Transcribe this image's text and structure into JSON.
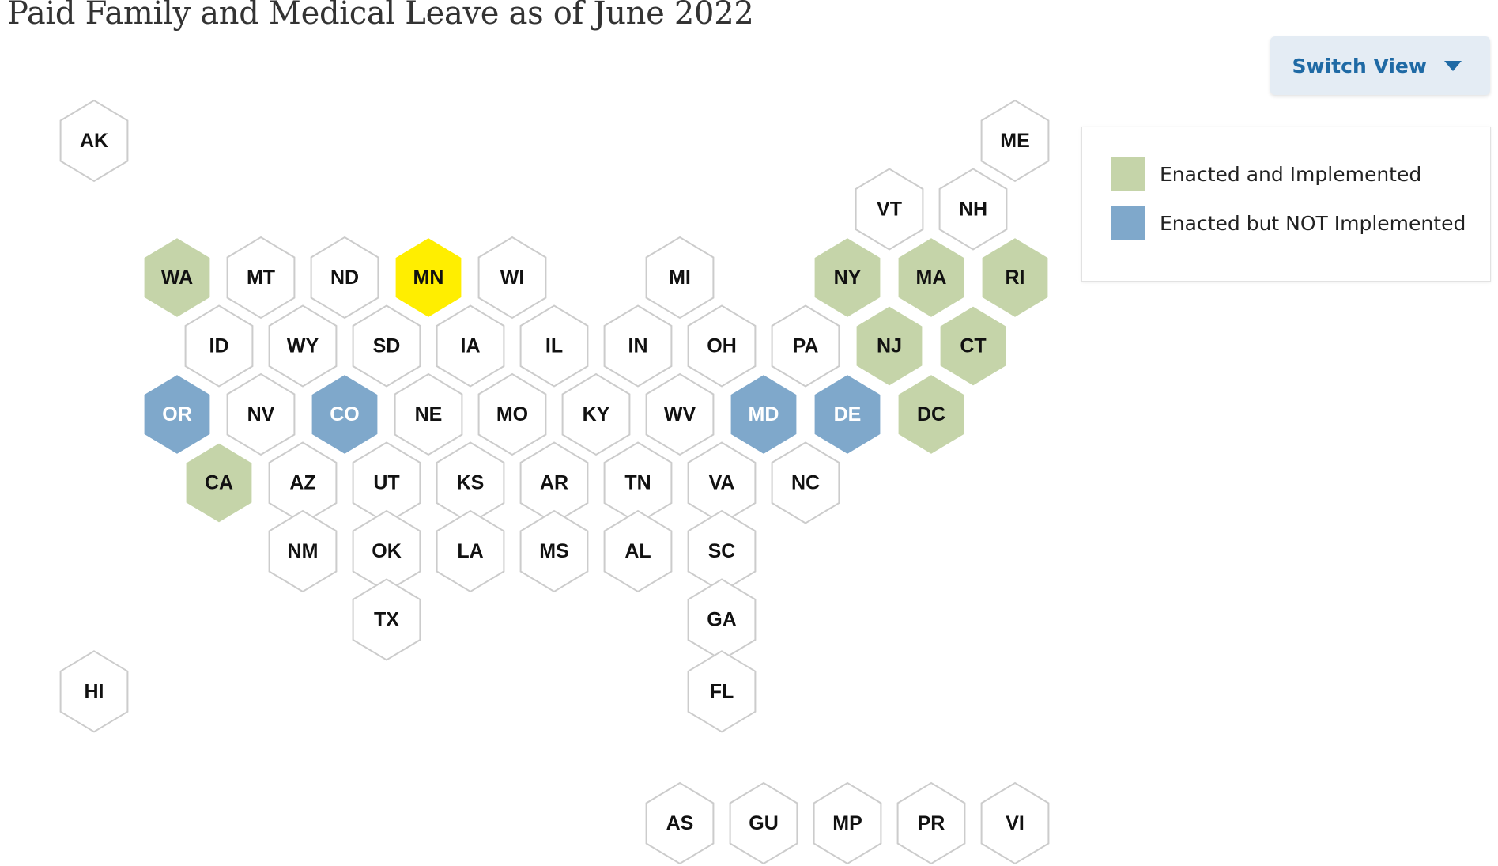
{
  "title": "Paid Family and Medical Leave as of June 2022",
  "switch_view": {
    "label": "Switch View",
    "icon": "caret-down-icon"
  },
  "legend": [
    {
      "key": "enacted_implemented",
      "label": "Enacted and Implemented",
      "color": "#c5d4a9"
    },
    {
      "key": "enacted_not_implemented",
      "label": "Enacted but NOT Implemented",
      "color": "#7fa8cb"
    }
  ],
  "colors": {
    "default": "#ffffff",
    "highlight": "#ffee00",
    "stroke": "#cccccc"
  },
  "states": [
    {
      "code": "AK",
      "status": "none"
    },
    {
      "code": "ME",
      "status": "none"
    },
    {
      "code": "VT",
      "status": "none"
    },
    {
      "code": "NH",
      "status": "none"
    },
    {
      "code": "WA",
      "status": "enacted_implemented"
    },
    {
      "code": "MT",
      "status": "none"
    },
    {
      "code": "ND",
      "status": "none"
    },
    {
      "code": "MN",
      "status": "highlight"
    },
    {
      "code": "WI",
      "status": "none"
    },
    {
      "code": "MI",
      "status": "none"
    },
    {
      "code": "NY",
      "status": "enacted_implemented"
    },
    {
      "code": "MA",
      "status": "enacted_implemented"
    },
    {
      "code": "RI",
      "status": "enacted_implemented"
    },
    {
      "code": "ID",
      "status": "none"
    },
    {
      "code": "WY",
      "status": "none"
    },
    {
      "code": "SD",
      "status": "none"
    },
    {
      "code": "IA",
      "status": "none"
    },
    {
      "code": "IL",
      "status": "none"
    },
    {
      "code": "IN",
      "status": "none"
    },
    {
      "code": "OH",
      "status": "none"
    },
    {
      "code": "PA",
      "status": "none"
    },
    {
      "code": "NJ",
      "status": "enacted_implemented"
    },
    {
      "code": "CT",
      "status": "enacted_implemented"
    },
    {
      "code": "OR",
      "status": "enacted_not_implemented"
    },
    {
      "code": "NV",
      "status": "none"
    },
    {
      "code": "CO",
      "status": "enacted_not_implemented"
    },
    {
      "code": "NE",
      "status": "none"
    },
    {
      "code": "MO",
      "status": "none"
    },
    {
      "code": "KY",
      "status": "none"
    },
    {
      "code": "WV",
      "status": "none"
    },
    {
      "code": "MD",
      "status": "enacted_not_implemented"
    },
    {
      "code": "DE",
      "status": "enacted_not_implemented"
    },
    {
      "code": "DC",
      "status": "enacted_implemented"
    },
    {
      "code": "CA",
      "status": "enacted_implemented"
    },
    {
      "code": "AZ",
      "status": "none"
    },
    {
      "code": "UT",
      "status": "none"
    },
    {
      "code": "KS",
      "status": "none"
    },
    {
      "code": "AR",
      "status": "none"
    },
    {
      "code": "TN",
      "status": "none"
    },
    {
      "code": "VA",
      "status": "none"
    },
    {
      "code": "NC",
      "status": "none"
    },
    {
      "code": "NM",
      "status": "none"
    },
    {
      "code": "OK",
      "status": "none"
    },
    {
      "code": "LA",
      "status": "none"
    },
    {
      "code": "MS",
      "status": "none"
    },
    {
      "code": "AL",
      "status": "none"
    },
    {
      "code": "SC",
      "status": "none"
    },
    {
      "code": "TX",
      "status": "none"
    },
    {
      "code": "GA",
      "status": "none"
    },
    {
      "code": "HI",
      "status": "none"
    },
    {
      "code": "FL",
      "status": "none"
    },
    {
      "code": "AS",
      "status": "none"
    },
    {
      "code": "GU",
      "status": "none"
    },
    {
      "code": "MP",
      "status": "none"
    },
    {
      "code": "PR",
      "status": "none"
    },
    {
      "code": "VI",
      "status": "none"
    }
  ]
}
